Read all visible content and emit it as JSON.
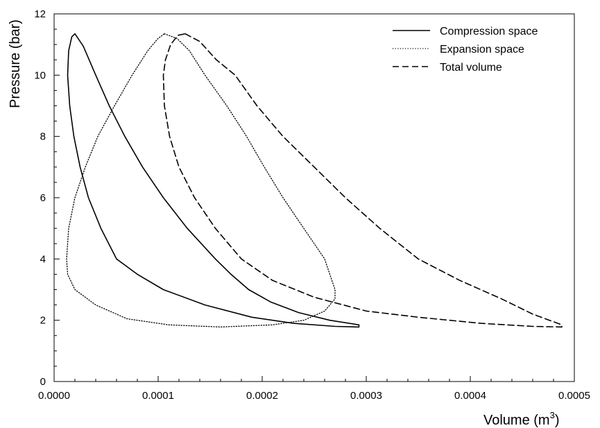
{
  "chart_data": {
    "type": "line",
    "title": "",
    "xlabel": "Volume (m",
    "xlabel_superscript": "3",
    "xlabel_suffix": ")",
    "ylabel": "Pressure (bar)",
    "xlim": [
      0,
      0.0005
    ],
    "ylim": [
      0,
      12
    ],
    "x_ticks": [
      "0.0000",
      "0.0001",
      "0.0002",
      "0.0003",
      "0.0004",
      "0.0005"
    ],
    "y_ticks": [
      "0",
      "2",
      "4",
      "6",
      "8",
      "10",
      "12"
    ],
    "grid": false,
    "legend_position": "top-right",
    "series": [
      {
        "name": "Compression space",
        "style": "solid",
        "points": [
          [
            2e-05,
            11.35
          ],
          [
            2.8e-05,
            10.95
          ],
          [
            4e-05,
            10.0
          ],
          [
            5.3e-05,
            9.0
          ],
          [
            6.8e-05,
            8.0
          ],
          [
            8.5e-05,
            7.0
          ],
          [
            0.000105,
            6.0
          ],
          [
            0.000128,
            5.0
          ],
          [
            0.000155,
            4.0
          ],
          [
            0.00017,
            3.5
          ],
          [
            0.000187,
            3.0
          ],
          [
            0.000208,
            2.6
          ],
          [
            0.000235,
            2.25
          ],
          [
            0.000265,
            2.0
          ],
          [
            0.000293,
            1.85
          ],
          [
            0.000293,
            1.78
          ],
          [
            0.00027,
            1.8
          ],
          [
            0.00023,
            1.9
          ],
          [
            0.00019,
            2.1
          ],
          [
            0.000145,
            2.5
          ],
          [
            0.000105,
            3.0
          ],
          [
            8e-05,
            3.5
          ],
          [
            6e-05,
            4.0
          ],
          [
            4.5e-05,
            5.0
          ],
          [
            3.3e-05,
            6.0
          ],
          [
            2.5e-05,
            7.0
          ],
          [
            1.9e-05,
            8.0
          ],
          [
            1.5e-05,
            9.0
          ],
          [
            1.3e-05,
            10.0
          ],
          [
            1.4e-05,
            10.8
          ],
          [
            1.7e-05,
            11.25
          ],
          [
            2e-05,
            11.35
          ]
        ]
      },
      {
        "name": "Expansion space",
        "style": "dotted",
        "points": [
          [
            0.000106,
            11.35
          ],
          [
            0.000118,
            11.2
          ],
          [
            0.00013,
            10.8
          ],
          [
            0.000145,
            10.0
          ],
          [
            0.000166,
            9.0
          ],
          [
            0.000185,
            8.0
          ],
          [
            0.000202,
            7.0
          ],
          [
            0.00022,
            6.0
          ],
          [
            0.00024,
            5.0
          ],
          [
            0.00026,
            4.0
          ],
          [
            0.00027,
            3.0
          ],
          [
            0.00027,
            2.7
          ],
          [
            0.00026,
            2.3
          ],
          [
            0.00024,
            2.0
          ],
          [
            0.00021,
            1.85
          ],
          [
            0.00016,
            1.78
          ],
          [
            0.00011,
            1.85
          ],
          [
            7e-05,
            2.05
          ],
          [
            4e-05,
            2.5
          ],
          [
            2e-05,
            3.0
          ],
          [
            1.3e-05,
            3.5
          ],
          [
            1.2e-05,
            4.0
          ],
          [
            1.4e-05,
            5.0
          ],
          [
            2e-05,
            6.0
          ],
          [
            3e-05,
            7.0
          ],
          [
            4.2e-05,
            8.0
          ],
          [
            5.8e-05,
            9.0
          ],
          [
            7.5e-05,
            10.0
          ],
          [
            9e-05,
            10.8
          ],
          [
            0.0001,
            11.2
          ],
          [
            0.000106,
            11.35
          ]
        ]
      },
      {
        "name": "Total volume",
        "style": "dashed",
        "points": [
          [
            0.000126,
            11.35
          ],
          [
            0.00014,
            11.1
          ],
          [
            0.000156,
            10.5
          ],
          [
            0.000174,
            10.0
          ],
          [
            0.000195,
            9.0
          ],
          [
            0.00022,
            8.0
          ],
          [
            0.00025,
            7.0
          ],
          [
            0.00028,
            6.0
          ],
          [
            0.000313,
            5.0
          ],
          [
            0.00035,
            4.0
          ],
          [
            0.00039,
            3.3
          ],
          [
            0.00043,
            2.7
          ],
          [
            0.00046,
            2.2
          ],
          [
            0.000488,
            1.85
          ],
          [
            0.000488,
            1.78
          ],
          [
            0.00046,
            1.8
          ],
          [
            0.00041,
            1.9
          ],
          [
            0.00035,
            2.1
          ],
          [
            0.0003,
            2.3
          ],
          [
            0.00025,
            2.75
          ],
          [
            0.00021,
            3.3
          ],
          [
            0.00018,
            4.0
          ],
          [
            0.000155,
            5.0
          ],
          [
            0.000135,
            6.0
          ],
          [
            0.00012,
            7.0
          ],
          [
            0.000111,
            8.0
          ],
          [
            0.000106,
            9.0
          ],
          [
            0.000105,
            10.0
          ],
          [
            0.000107,
            10.5
          ],
          [
            0.000112,
            11.0
          ],
          [
            0.000119,
            11.3
          ],
          [
            0.000126,
            11.35
          ]
        ]
      }
    ]
  }
}
